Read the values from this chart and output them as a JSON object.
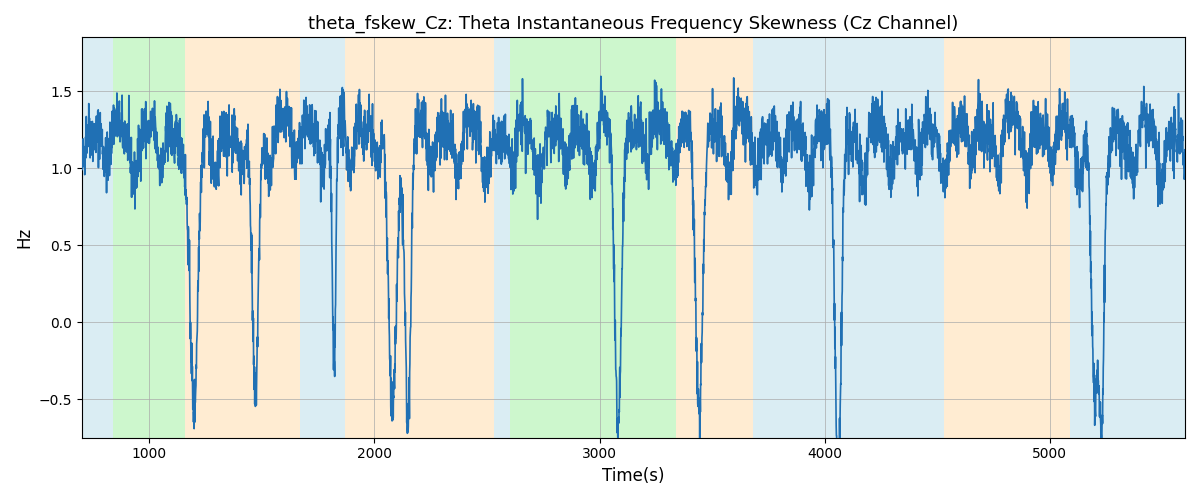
{
  "title": "theta_fskew_Cz: Theta Instantaneous Frequency Skewness (Cz Channel)",
  "xlabel": "Time(s)",
  "ylabel": "Hz",
  "xlim": [
    700,
    5600
  ],
  "ylim": [
    -0.75,
    1.85
  ],
  "yticks": [
    -0.5,
    0.0,
    0.5,
    1.0,
    1.5
  ],
  "xticks": [
    1000,
    2000,
    3000,
    4000,
    5000
  ],
  "line_color": "#2070b4",
  "line_width": 1.2,
  "background_color": "#ffffff",
  "grid_color": "#aaaaaa",
  "bg_bands": [
    {
      "xmin": 700,
      "xmax": 840,
      "color": "#add8e6",
      "alpha": 0.45
    },
    {
      "xmin": 840,
      "xmax": 1160,
      "color": "#90ee90",
      "alpha": 0.45
    },
    {
      "xmin": 1160,
      "xmax": 1670,
      "color": "#ffdead",
      "alpha": 0.55
    },
    {
      "xmin": 1670,
      "xmax": 1870,
      "color": "#add8e6",
      "alpha": 0.45
    },
    {
      "xmin": 1870,
      "xmax": 2530,
      "color": "#ffdead",
      "alpha": 0.55
    },
    {
      "xmin": 2530,
      "xmax": 2600,
      "color": "#add8e6",
      "alpha": 0.45
    },
    {
      "xmin": 2600,
      "xmax": 3340,
      "color": "#90ee90",
      "alpha": 0.45
    },
    {
      "xmin": 3340,
      "xmax": 3680,
      "color": "#ffdead",
      "alpha": 0.55
    },
    {
      "xmin": 3680,
      "xmax": 4530,
      "color": "#add8e6",
      "alpha": 0.45
    },
    {
      "xmin": 4530,
      "xmax": 5090,
      "color": "#ffdead",
      "alpha": 0.55
    },
    {
      "xmin": 5090,
      "xmax": 5600,
      "color": "#add8e6",
      "alpha": 0.45
    }
  ],
  "seed": 42,
  "n_points": 4900,
  "t_start": 700,
  "t_end": 5600,
  "base_level": 1.18,
  "noise_std": 0.09,
  "osc_amplitude": 0.13,
  "osc_period": 120,
  "figure_width": 12.0,
  "figure_height": 5.0,
  "dpi": 100
}
